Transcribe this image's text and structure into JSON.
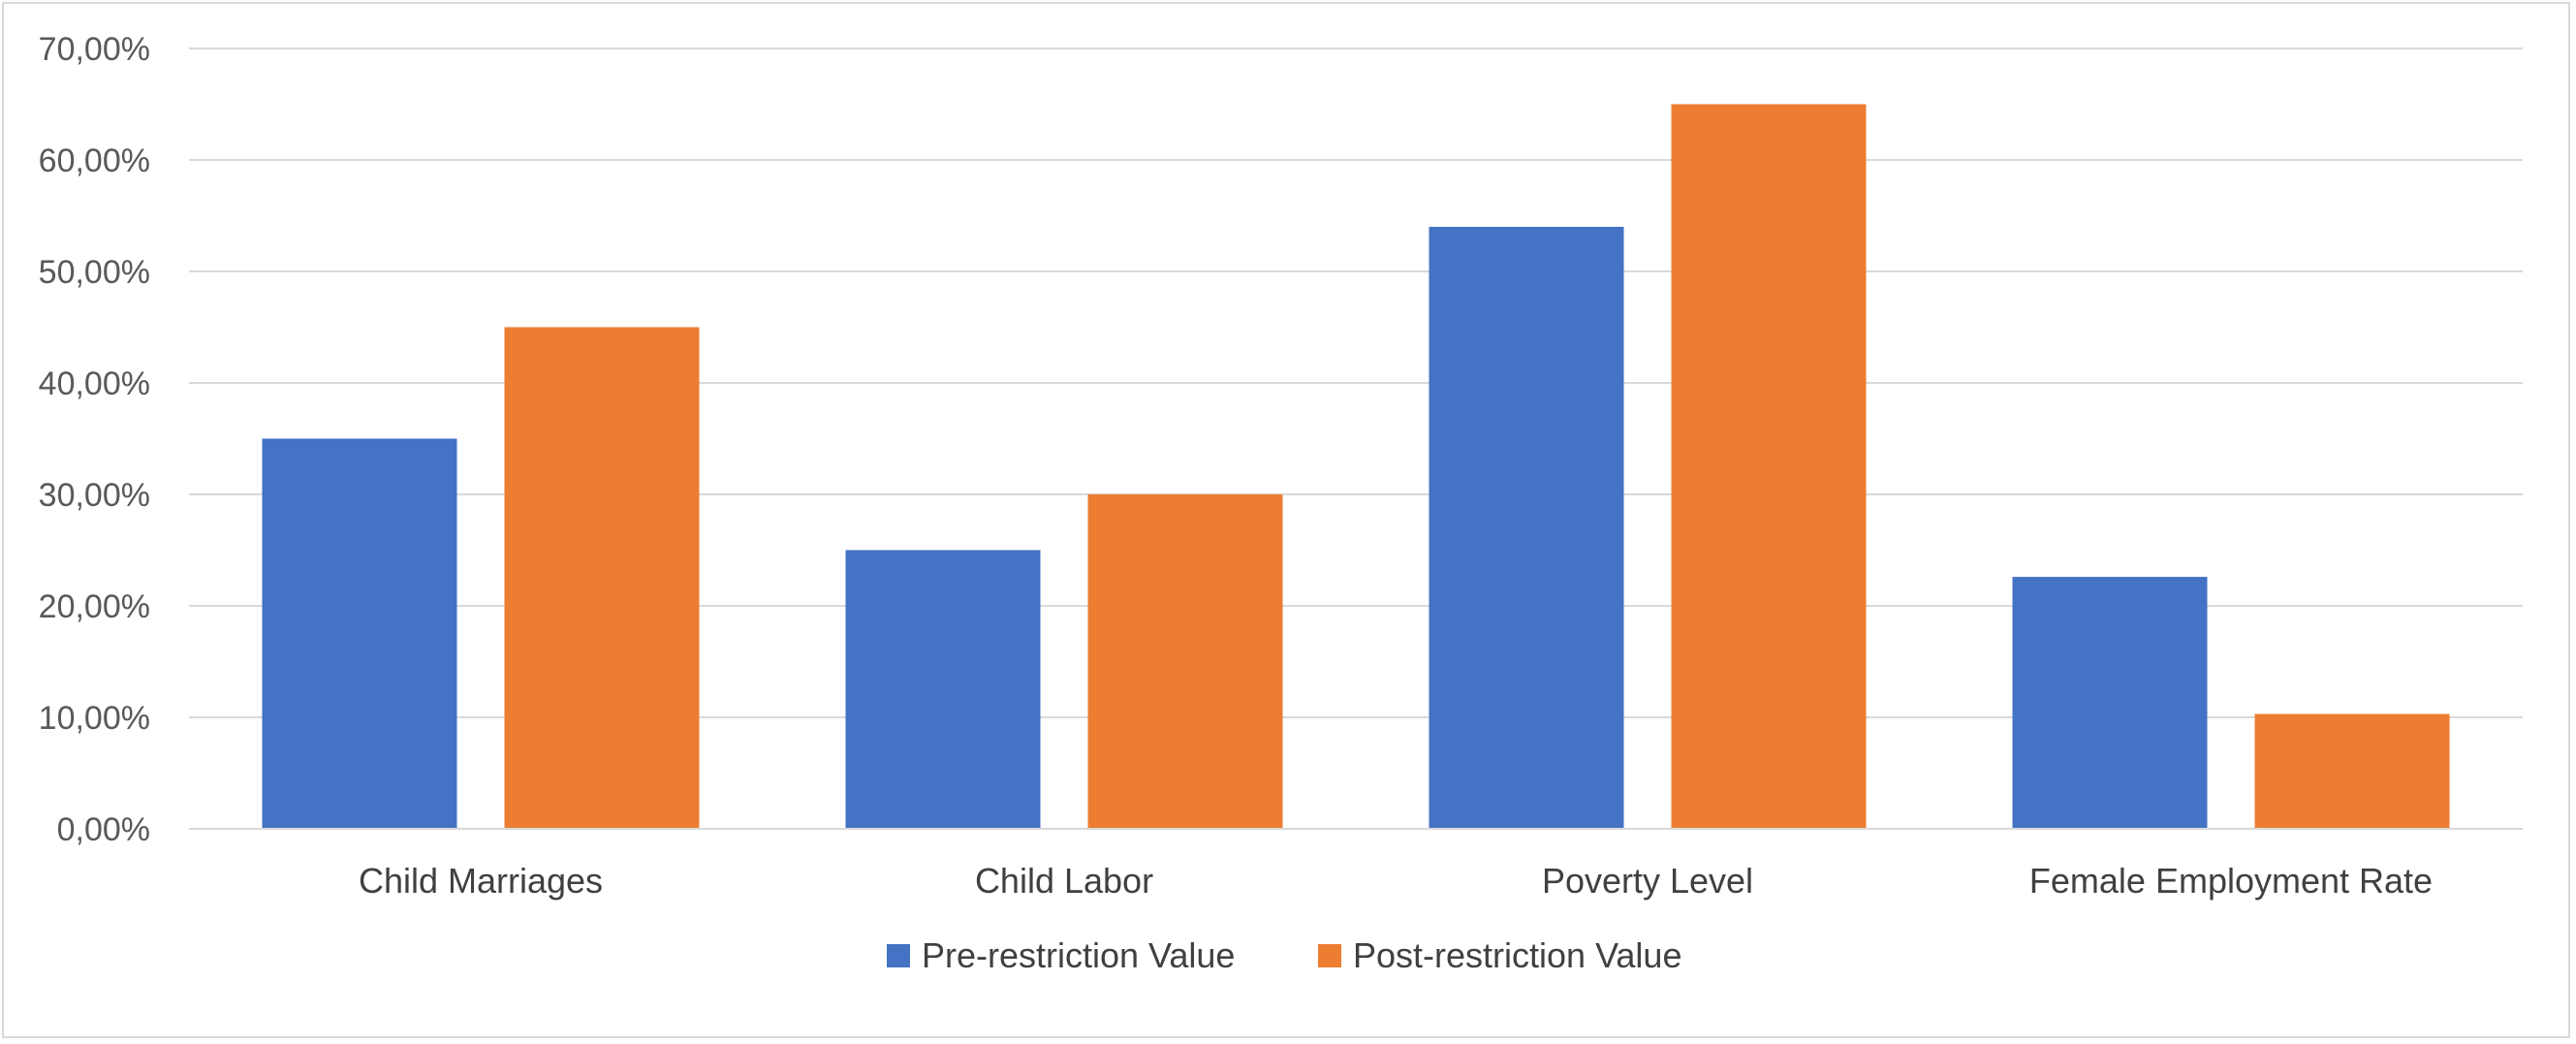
{
  "chart_data": {
    "type": "bar",
    "title": "",
    "xlabel": "",
    "ylabel": "",
    "categories": [
      "Child Marriages",
      "Child Labor",
      "Poverty Level",
      "Female Employment Rate"
    ],
    "series": [
      {
        "name": "Pre-restriction Value",
        "color": "#4472C4",
        "values": [
          35.0,
          25.0,
          54.0,
          22.6
        ]
      },
      {
        "name": "Post-restriction Value",
        "color": "#ED7D31",
        "values": [
          45.0,
          30.0,
          65.0,
          10.3
        ]
      }
    ],
    "ylim": [
      0,
      70
    ],
    "yticks": [
      0,
      10,
      20,
      30,
      40,
      50,
      60,
      70
    ],
    "ytick_labels": [
      "0,00%",
      "10,00%",
      "20,00%",
      "30,00%",
      "40,00%",
      "50,00%",
      "60,00%",
      "70,00%"
    ],
    "grid": true,
    "gridline_color": "#d9d9d9",
    "legend_position": "bottom"
  }
}
